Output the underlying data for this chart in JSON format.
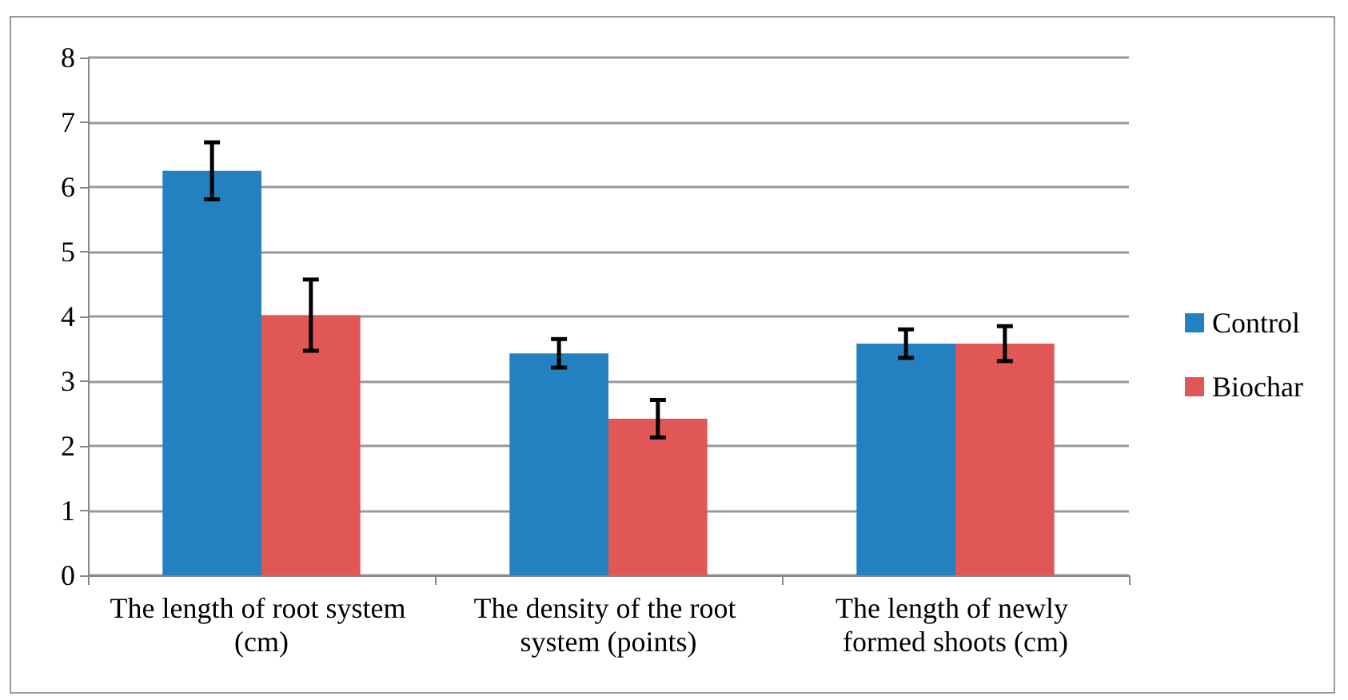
{
  "chart_data": {
    "type": "bar",
    "categories": [
      "The length of root system (cm)",
      "The density of the root system (points)",
      "The length of newly formed shoots (cm)"
    ],
    "series": [
      {
        "name": "Control",
        "color": "#2381c1",
        "values": [
          6.25,
          3.43,
          3.58
        ],
        "errors": [
          0.44,
          0.22,
          0.22
        ]
      },
      {
        "name": "Biochar",
        "color": "#e05755",
        "values": [
          4.02,
          2.42,
          3.58
        ],
        "errors": [
          0.55,
          0.29,
          0.27
        ]
      }
    ],
    "ylim": [
      0,
      8
    ],
    "yticks": [
      0,
      1,
      2,
      3,
      4,
      5,
      6,
      7,
      8
    ],
    "grid": "y",
    "legend": "right"
  }
}
